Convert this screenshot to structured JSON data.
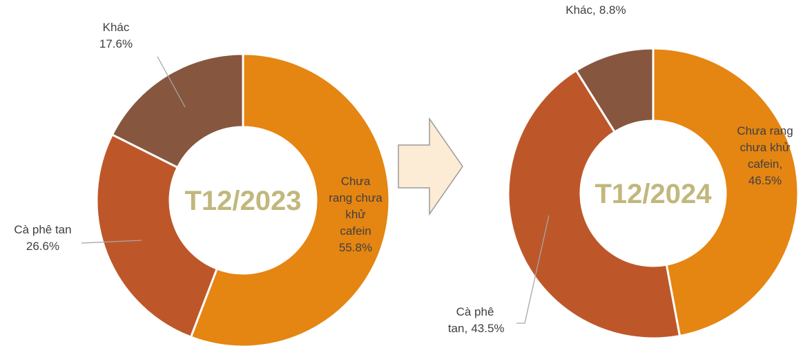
{
  "chart_data": [
    {
      "type": "donut",
      "center_label": "T12/2023",
      "categories": [
        "Chưa rang chưa khử cafein",
        "Cà phê tan",
        "Khác"
      ],
      "values": [
        55.8,
        26.6,
        17.6
      ],
      "value_labels": [
        "55.8%",
        "26.6%",
        "17.6%"
      ],
      "colors": [
        "#E58512",
        "#BD572A",
        "#87563F"
      ]
    },
    {
      "type": "donut",
      "center_label": "T12/2024",
      "categories": [
        "Chưa rang chưa khử cafein",
        "Cà phê tan",
        "Khác"
      ],
      "values": [
        46.5,
        43.5,
        8.8
      ],
      "value_labels": [
        "46.5%",
        "43.5%",
        "8.8%"
      ],
      "label_separator": ",",
      "colors": [
        "#E58512",
        "#BD572A",
        "#87563F"
      ]
    }
  ]
}
